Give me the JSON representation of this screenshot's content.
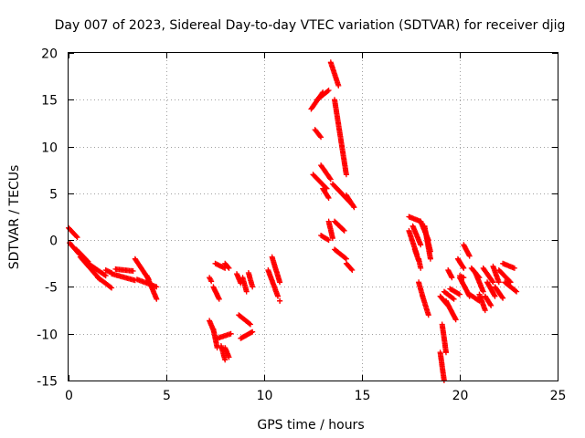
{
  "chart_data": {
    "type": "scatter",
    "title": "Day 007 of 2023, Sidereal Day-to-day VTEC variation (SDTVAR) for receiver djig",
    "xlabel": "GPS time / hours",
    "ylabel": "SDTVAR / TECUs",
    "xlim": [
      0,
      25
    ],
    "ylim": [
      -15,
      20
    ],
    "xticks": [
      "0",
      "5",
      "10",
      "15",
      "20",
      "25"
    ],
    "yticks": [
      "20",
      "15",
      "10",
      "5",
      "0",
      "-5",
      "-10",
      "-15"
    ],
    "grid": true,
    "marker": "plus",
    "color": "#ff0000",
    "series": [
      {
        "name": "SDTVAR",
        "segments": [
          {
            "x": [
              0.0,
              0.45
            ],
            "y": [
              1.3,
              0.3
            ]
          },
          {
            "x": [
              0.05,
              0.55
            ],
            "y": [
              -0.3,
              -1.5
            ]
          },
          {
            "x": [
              0.4,
              1.0
            ],
            "y": [
              -1.0,
              -2.3
            ]
          },
          {
            "x": [
              0.6,
              1.6
            ],
            "y": [
              -1.8,
              -4.2
            ]
          },
          {
            "x": [
              1.0,
              1.9
            ],
            "y": [
              -2.5,
              -3.8
            ]
          },
          {
            "x": [
              1.5,
              2.2
            ],
            "y": [
              -4.0,
              -5.1
            ]
          },
          {
            "x": [
              1.9,
              2.2
            ],
            "y": [
              -3.2,
              -3.5
            ]
          },
          {
            "x": [
              2.2,
              3.4
            ],
            "y": [
              -3.6,
              -4.3
            ]
          },
          {
            "x": [
              2.4,
              3.3
            ],
            "y": [
              -3.1,
              -3.3
            ]
          },
          {
            "x": [
              3.4,
              4.1
            ],
            "y": [
              -2.0,
              -4.2
            ]
          },
          {
            "x": [
              3.5,
              4.5
            ],
            "y": [
              -4.2,
              -5.0
            ]
          },
          {
            "x": [
              4.0,
              4.5
            ],
            "y": [
              -3.8,
              -6.3
            ]
          },
          {
            "x": [
              7.2,
              7.3
            ],
            "y": [
              -4.0,
              -4.4
            ]
          },
          {
            "x": [
              7.4,
              7.7
            ],
            "y": [
              -5.0,
              -6.3
            ]
          },
          {
            "x": [
              7.5,
              8.0
            ],
            "y": [
              -2.5,
              -3.0
            ]
          },
          {
            "x": [
              7.2,
              7.4
            ],
            "y": [
              -8.6,
              -9.6
            ]
          },
          {
            "x": [
              7.4,
              7.6
            ],
            "y": [
              -9.5,
              -11.5
            ]
          },
          {
            "x": [
              7.6,
              8.3
            ],
            "y": [
              -10.5,
              -10.0
            ]
          },
          {
            "x": [
              7.8,
              8.0
            ],
            "y": [
              -11.3,
              -12.8
            ]
          },
          {
            "x": [
              8.0,
              8.2
            ],
            "y": [
              -11.5,
              -12.5
            ]
          },
          {
            "x": [
              8.0,
              8.2
            ],
            "y": [
              -2.5,
              -3.0
            ]
          },
          {
            "x": [
              8.6,
              8.8
            ],
            "y": [
              -3.6,
              -4.6
            ]
          },
          {
            "x": [
              8.7,
              9.3
            ],
            "y": [
              -8.0,
              -9.0
            ]
          },
          {
            "x": [
              8.9,
              9.1
            ],
            "y": [
              -4.0,
              -5.5
            ]
          },
          {
            "x": [
              8.8,
              9.4
            ],
            "y": [
              -10.5,
              -9.8
            ]
          },
          {
            "x": [
              9.2,
              9.4
            ],
            "y": [
              -3.5,
              -5.0
            ]
          },
          {
            "x": [
              10.2,
              10.7
            ],
            "y": [
              -3.2,
              -6.0
            ]
          },
          {
            "x": [
              10.4,
              10.8
            ],
            "y": [
              -1.8,
              -4.5
            ]
          },
          {
            "x": [
              10.8,
              10.8
            ],
            "y": [
              -6.5,
              -6.5
            ]
          },
          {
            "x": [
              12.4,
              13.0
            ],
            "y": [
              14.0,
              15.8
            ]
          },
          {
            "x": [
              12.7,
              13.3
            ],
            "y": [
              15.0,
              16.0
            ]
          },
          {
            "x": [
              12.6,
              12.9
            ],
            "y": [
              11.8,
              11.0
            ]
          },
          {
            "x": [
              13.4,
              13.8
            ],
            "y": [
              19.0,
              16.5
            ]
          },
          {
            "x": [
              13.6,
              14.2
            ],
            "y": [
              15.0,
              7.0
            ]
          },
          {
            "x": [
              12.5,
              13.2
            ],
            "y": [
              7.0,
              5.5
            ]
          },
          {
            "x": [
              12.9,
              13.4
            ],
            "y": [
              8.0,
              6.5
            ]
          },
          {
            "x": [
              13.0,
              13.3
            ],
            "y": [
              5.5,
              4.5
            ]
          },
          {
            "x": [
              13.5,
              14.5
            ],
            "y": [
              6.0,
              3.8
            ]
          },
          {
            "x": [
              14.2,
              14.6
            ],
            "y": [
              4.8,
              3.5
            ]
          },
          {
            "x": [
              13.6,
              14.1
            ],
            "y": [
              2.0,
              1.0
            ]
          },
          {
            "x": [
              12.9,
              13.3
            ],
            "y": [
              0.5,
              0.0
            ]
          },
          {
            "x": [
              13.3,
              13.5
            ],
            "y": [
              2.0,
              0.2
            ]
          },
          {
            "x": [
              13.6,
              14.2
            ],
            "y": [
              -1.0,
              -2.0
            ]
          },
          {
            "x": [
              14.2,
              14.5
            ],
            "y": [
              -2.5,
              -3.2
            ]
          },
          {
            "x": [
              17.4,
              18.0
            ],
            "y": [
              2.5,
              2.0
            ]
          },
          {
            "x": [
              17.4,
              17.8
            ],
            "y": [
              1.0,
              -1.5
            ]
          },
          {
            "x": [
              17.6,
              18.0
            ],
            "y": [
              1.5,
              -0.5
            ]
          },
          {
            "x": [
              17.7,
              17.9
            ],
            "y": [
              -1.0,
              -2.2
            ]
          },
          {
            "x": [
              17.9,
              18.0
            ],
            "y": [
              -2.0,
              -3.0
            ]
          },
          {
            "x": [
              18.0,
              18.4
            ],
            "y": [
              2.0,
              0.0
            ]
          },
          {
            "x": [
              18.2,
              18.5
            ],
            "y": [
              1.5,
              -2.0
            ]
          },
          {
            "x": [
              18.3,
              18.5
            ],
            "y": [
              0.5,
              -1.2
            ]
          },
          {
            "x": [
              17.9,
              18.1
            ],
            "y": [
              -4.5,
              -6.0
            ]
          },
          {
            "x": [
              18.1,
              18.4
            ],
            "y": [
              -6.0,
              -8.0
            ]
          },
          {
            "x": [
              19.0,
              19.2
            ],
            "y": [
              -12.0,
              -15.0
            ]
          },
          {
            "x": [
              19.1,
              19.3
            ],
            "y": [
              -9.0,
              -12.0
            ]
          },
          {
            "x": [
              19.0,
              19.4
            ],
            "y": [
              -6.0,
              -7.0
            ]
          },
          {
            "x": [
              19.3,
              19.8
            ],
            "y": [
              -6.5,
              -8.5
            ]
          },
          {
            "x": [
              19.2,
              19.7
            ],
            "y": [
              -5.5,
              -6.3
            ]
          },
          {
            "x": [
              19.5,
              20.0
            ],
            "y": [
              -5.2,
              -5.8
            ]
          },
          {
            "x": [
              19.4,
              19.6
            ],
            "y": [
              -3.2,
              -4.0
            ]
          },
          {
            "x": [
              19.9,
              20.2
            ],
            "y": [
              -2.0,
              -3.0
            ]
          },
          {
            "x": [
              20.0,
              20.2
            ],
            "y": [
              -3.8,
              -4.0
            ]
          },
          {
            "x": [
              20.2,
              20.5
            ],
            "y": [
              -0.5,
              -1.7
            ]
          },
          {
            "x": [
              20.0,
              20.5
            ],
            "y": [
              -4.0,
              -6.0
            ]
          },
          {
            "x": [
              20.5,
              21.0
            ],
            "y": [
              -5.8,
              -6.5
            ]
          },
          {
            "x": [
              20.6,
              21.0
            ],
            "y": [
              -3.0,
              -4.0
            ]
          },
          {
            "x": [
              20.8,
              21.2
            ],
            "y": [
              -3.5,
              -5.5
            ]
          },
          {
            "x": [
              21.0,
              21.3
            ],
            "y": [
              -5.8,
              -7.5
            ]
          },
          {
            "x": [
              21.2,
              21.7
            ],
            "y": [
              -3.0,
              -4.5
            ]
          },
          {
            "x": [
              21.3,
              21.6
            ],
            "y": [
              -6.0,
              -7.0
            ]
          },
          {
            "x": [
              21.4,
              21.8
            ],
            "y": [
              -4.5,
              -6.0
            ]
          },
          {
            "x": [
              21.7,
              22.0
            ],
            "y": [
              -2.8,
              -4.5
            ]
          },
          {
            "x": [
              21.8,
              22.2
            ],
            "y": [
              -5.0,
              -6.2
            ]
          },
          {
            "x": [
              22.0,
              22.6
            ],
            "y": [
              -3.2,
              -4.5
            ]
          },
          {
            "x": [
              22.2,
              22.8
            ],
            "y": [
              -2.5,
              -3.0
            ]
          },
          {
            "x": [
              22.3,
              22.9
            ],
            "y": [
              -4.5,
              -5.5
            ]
          }
        ]
      }
    ]
  }
}
